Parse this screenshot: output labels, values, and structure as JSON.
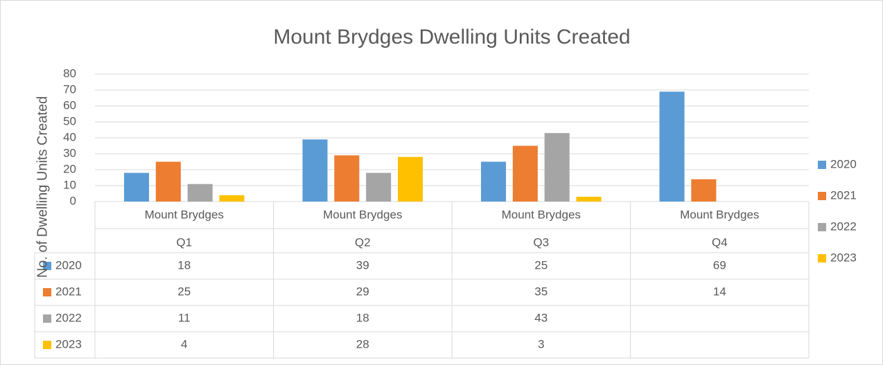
{
  "chart_data": {
    "type": "bar",
    "title": "Mount Brydges Dwelling Units Created",
    "ylabel": "No. of Dwelling Units Created",
    "category_groups": [
      "Mount Brydges",
      "Mount Brydges",
      "Mount Brydges",
      "Mount Brydges"
    ],
    "categories": [
      "Q1",
      "Q2",
      "Q3",
      "Q4"
    ],
    "series": [
      {
        "name": "2020",
        "color": "#5b9bd5",
        "values": [
          18,
          39,
          25,
          69
        ]
      },
      {
        "name": "2021",
        "color": "#ed7d31",
        "values": [
          25,
          29,
          35,
          14
        ]
      },
      {
        "name": "2022",
        "color": "#a5a5a5",
        "values": [
          11,
          18,
          43,
          null
        ]
      },
      {
        "name": "2023",
        "color": "#ffc000",
        "values": [
          4,
          28,
          3,
          null
        ]
      }
    ],
    "ylim": [
      0,
      80
    ],
    "yticks": [
      0,
      10,
      20,
      30,
      40,
      50,
      60,
      70,
      80
    ],
    "grid": true,
    "legend": "right",
    "data_table": true
  }
}
